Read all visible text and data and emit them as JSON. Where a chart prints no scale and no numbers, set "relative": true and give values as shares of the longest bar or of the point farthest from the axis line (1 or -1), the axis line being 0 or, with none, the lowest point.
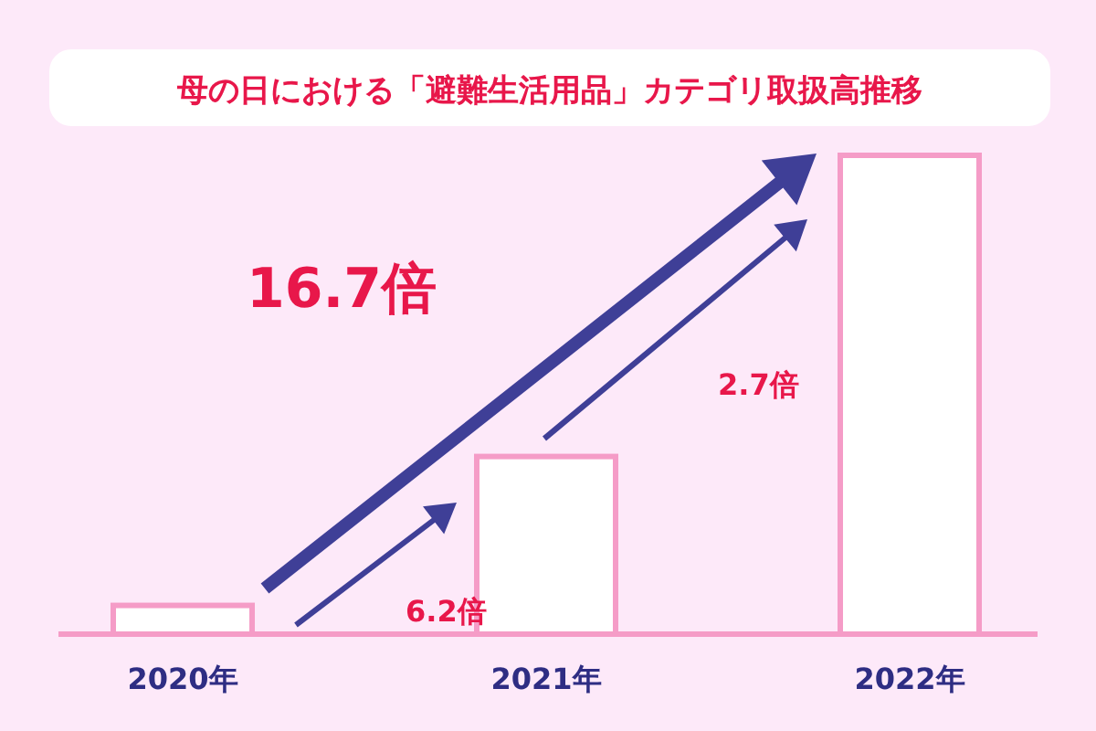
{
  "chart_data": {
    "type": "bar",
    "title": "母の日における「避難生活用品」カテゴリ取扱高推移",
    "categories": [
      "2020年",
      "2021年",
      "2022年"
    ],
    "values": [
      0.06,
      0.371,
      1
    ],
    "color": "#ffffff",
    "relative": true,
    "annotations": [
      "16.7倍",
      "6.2倍",
      "2.7倍"
    ]
  }
}
